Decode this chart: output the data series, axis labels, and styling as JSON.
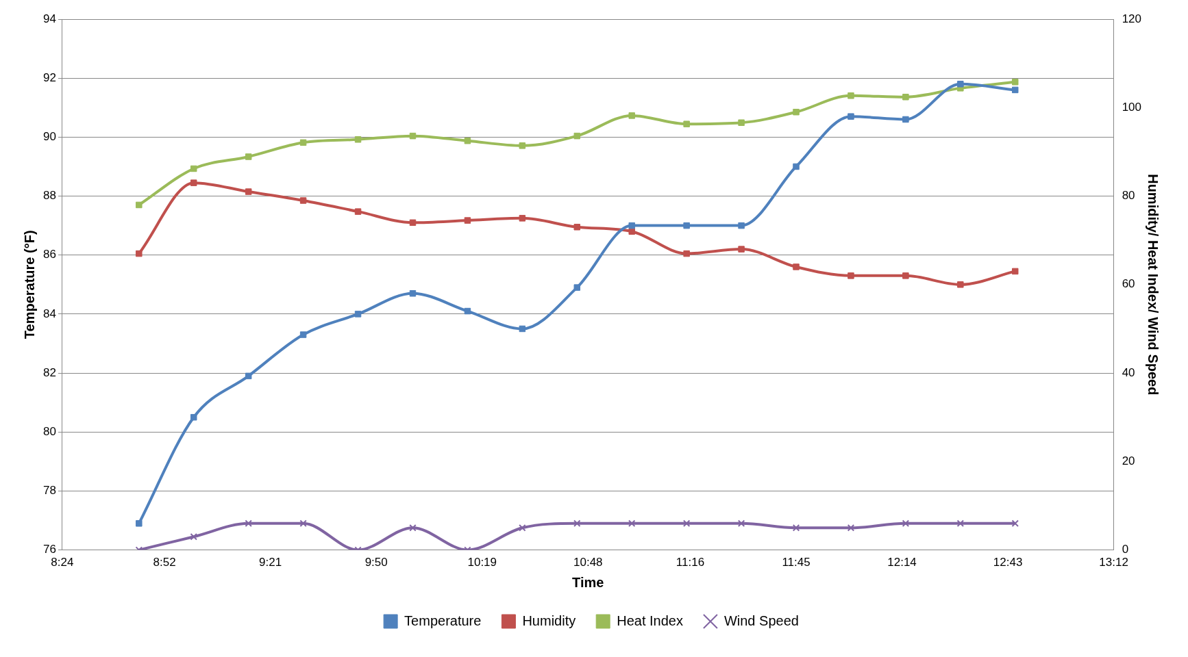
{
  "chart_data": {
    "type": "line",
    "xlabel": "Time",
    "ylabel": "Temperature (°F)",
    "y2label": "Humidity/ Heat Index/ Wind Speed",
    "x": [
      8.75,
      9,
      9.25,
      9.5,
      9.75,
      10,
      10.25,
      10.5,
      10.75,
      11,
      11.25,
      11.5,
      11.75,
      12,
      12.25,
      12.5,
      12.75
    ],
    "xlim": [
      8.4,
      13.2
    ],
    "xticks": [
      {
        "value": 8.4,
        "label": "8:24"
      },
      {
        "value": 8.8667,
        "label": "8:52"
      },
      {
        "value": 9.35,
        "label": "9:21"
      },
      {
        "value": 9.8333,
        "label": "9:50"
      },
      {
        "value": 10.3167,
        "label": "10:19"
      },
      {
        "value": 10.8,
        "label": "10:48"
      },
      {
        "value": 11.2667,
        "label": "11:16"
      },
      {
        "value": 11.75,
        "label": "11:45"
      },
      {
        "value": 12.2333,
        "label": "12:14"
      },
      {
        "value": 12.7167,
        "label": "12:43"
      },
      {
        "value": 13.2,
        "label": "13:12"
      }
    ],
    "ylim": [
      76,
      94
    ],
    "yticks": [
      76,
      78,
      80,
      82,
      84,
      86,
      88,
      90,
      92,
      94
    ],
    "y2lim": [
      0,
      120
    ],
    "y2ticks": [
      0,
      20,
      40,
      60,
      80,
      100,
      120
    ],
    "grid": "y",
    "legend": "bottom",
    "line_style": "solid",
    "series": [
      {
        "name": "Temperature",
        "color": "#4f81bd",
        "marker": "square",
        "values": [
          76.9,
          80.5,
          81.9,
          83.3,
          84.0,
          84.7,
          84.1,
          83.5,
          84.9,
          87.0,
          87.0,
          87.0,
          89.0,
          90.7,
          90.6,
          91.8,
          91.6
        ]
      },
      {
        "name": "Humidity",
        "color": "#c0504d",
        "marker": "square",
        "axis": "y2",
        "values": [
          67,
          83,
          81,
          79,
          76.5,
          74,
          74.5,
          75,
          73,
          72,
          67,
          68,
          64,
          62,
          62,
          60,
          63
        ]
      },
      {
        "name": "Heat Index",
        "color": "#9bbb59",
        "marker": "square",
        "axis": "y2",
        "values": [
          78,
          86.2,
          88.9,
          92.1,
          92.8,
          93.6,
          92.5,
          91.4,
          93.6,
          98.2,
          96.3,
          96.6,
          99,
          102.7,
          102.4,
          104.4,
          105.8
        ]
      },
      {
        "name": "Wind Speed",
        "color": "#8064a2",
        "marker": "cross",
        "axis": "y2",
        "values": [
          0,
          3,
          6,
          6,
          0,
          5,
          0,
          5,
          6,
          6,
          6,
          6,
          5,
          5,
          6,
          6,
          6
        ]
      }
    ]
  }
}
